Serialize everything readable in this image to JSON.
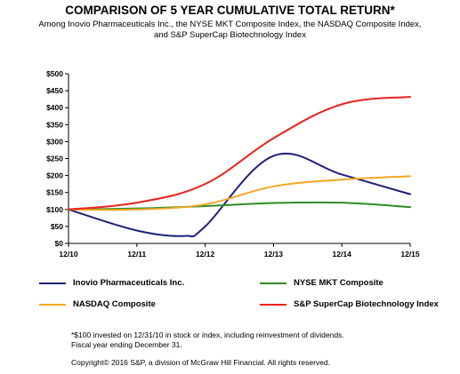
{
  "chart_data": {
    "type": "line",
    "title": "COMPARISON OF 5 YEAR CUMULATIVE TOTAL RETURN*",
    "subtitle_lines": [
      "Among Inovio Pharmaceuticals Inc., the NYSE MKT Composite Index, the NASDAQ Composite Index,",
      "and S&P SuperCap Biotechnology Index"
    ],
    "categories": [
      "12/10",
      "12/11",
      "12/12",
      "12/13",
      "12/14",
      "12/15"
    ],
    "y_ticks": [
      "$0",
      "$50",
      "$100",
      "$150",
      "$200",
      "$250",
      "$300",
      "$350",
      "$400",
      "$450",
      "$500"
    ],
    "ylim": [
      0,
      500
    ],
    "grid": false,
    "legend_position": "bottom",
    "series": [
      {
        "name": "Inovio Pharmaceuticals Inc.",
        "color": "#1f1f7a",
        "points": [
          [
            0,
            100
          ],
          [
            1,
            38
          ],
          [
            1.7,
            22
          ],
          [
            2,
            50
          ],
          [
            3,
            258
          ],
          [
            4,
            203
          ],
          [
            5,
            145
          ]
        ]
      },
      {
        "name": "NYSE MKT Composite",
        "color": "#2e8b22",
        "points": [
          [
            0,
            100
          ],
          [
            1,
            103
          ],
          [
            2,
            110
          ],
          [
            3,
            119
          ],
          [
            4,
            120
          ],
          [
            5,
            107
          ]
        ]
      },
      {
        "name": "NASDAQ Composite",
        "color": "#f5a623",
        "points": [
          [
            0,
            100
          ],
          [
            1,
            100
          ],
          [
            2,
            115
          ],
          [
            3,
            168
          ],
          [
            4,
            188
          ],
          [
            5,
            198
          ]
        ]
      },
      {
        "name": "S&P SuperCap Biotechnology Index",
        "color": "#e8231c",
        "points": [
          [
            0,
            100
          ],
          [
            1,
            120
          ],
          [
            2,
            175
          ],
          [
            3,
            310
          ],
          [
            4,
            410
          ],
          [
            5,
            432
          ]
        ]
      }
    ]
  },
  "footnote": {
    "line1": "*$100 invested on 12/31/10 in stock or index, including reinvestment of dividends.",
    "line2": "Fiscal year ending December 31.",
    "copyright": "Copyright© 2016 S&P, a division of McGraw Hill Financial.  All rights reserved."
  }
}
